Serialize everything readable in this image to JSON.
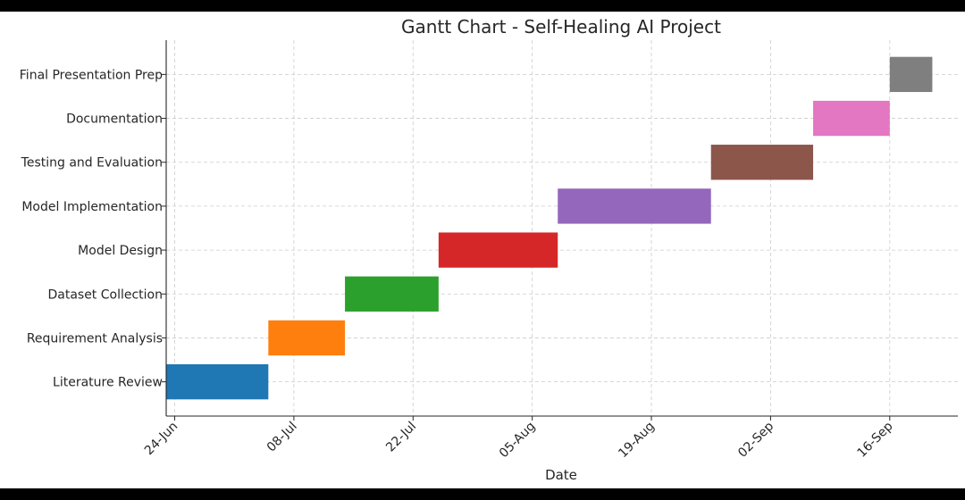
{
  "chart_data": {
    "type": "bar",
    "orientation": "horizontal",
    "title": "Gantt Chart - Self-Healing AI Project",
    "xlabel": "Date",
    "ylabel": "",
    "x_tick_labels": [
      "24-Jun",
      "08-Jul",
      "22-Jul",
      "05-Aug",
      "19-Aug",
      "02-Sep",
      "16-Sep"
    ],
    "x_tick_dates": [
      "2024-06-24",
      "2024-07-08",
      "2024-07-22",
      "2024-08-05",
      "2024-08-19",
      "2024-09-02",
      "2024-09-16"
    ],
    "xlim": [
      "2024-06-23",
      "2024-09-24"
    ],
    "grid": true,
    "legend": "none",
    "tasks": [
      {
        "name": "Literature Review",
        "start": "2024-06-23",
        "end": "2024-07-05",
        "color": "#1f77b4"
      },
      {
        "name": "Requirement Analysis",
        "start": "2024-07-05",
        "end": "2024-07-14",
        "color": "#ff7f0e"
      },
      {
        "name": "Dataset Collection",
        "start": "2024-07-14",
        "end": "2024-07-25",
        "color": "#2ca02c"
      },
      {
        "name": "Model Design",
        "start": "2024-07-25",
        "end": "2024-08-08",
        "color": "#d62728"
      },
      {
        "name": "Model Implementation",
        "start": "2024-08-08",
        "end": "2024-08-26",
        "color": "#9467bd"
      },
      {
        "name": "Testing and Evaluation",
        "start": "2024-08-26",
        "end": "2024-09-07",
        "color": "#8c564b"
      },
      {
        "name": "Documentation",
        "start": "2024-09-07",
        "end": "2024-09-16",
        "color": "#e377c2"
      },
      {
        "name": "Final Presentation Prep",
        "start": "2024-09-16",
        "end": "2024-09-21",
        "color": "#7f7f7f"
      }
    ]
  }
}
